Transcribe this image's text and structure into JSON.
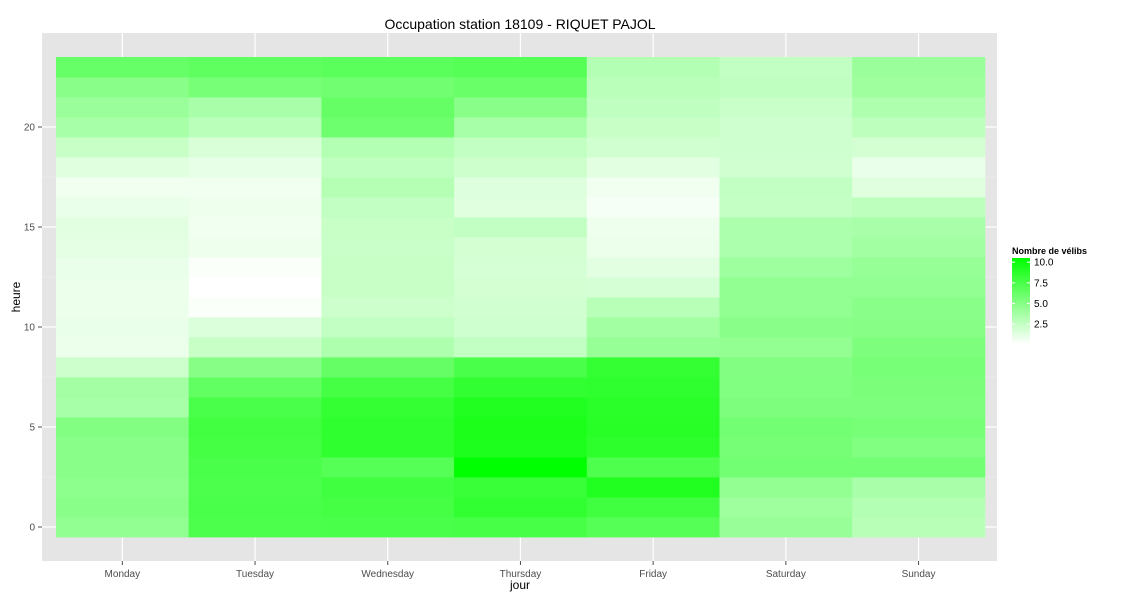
{
  "chart_data": {
    "type": "heatmap",
    "title": "Occupation station 18109 - RIQUET PAJOL",
    "xlabel": "jour",
    "ylabel": "heure",
    "categories": [
      "Monday",
      "Tuesday",
      "Wednesday",
      "Thursday",
      "Friday",
      "Saturday",
      "Sunday"
    ],
    "hours": [
      0,
      1,
      2,
      3,
      4,
      5,
      6,
      7,
      8,
      9,
      10,
      11,
      12,
      13,
      14,
      15,
      16,
      17,
      18,
      19,
      20,
      21,
      22,
      23
    ],
    "ylim": [
      -0.5,
      23.5
    ],
    "yticks": [
      0,
      5,
      10,
      15,
      20
    ],
    "color_low": "#ffffff",
    "color_high": "#00ff00",
    "background": "#e5e5e5",
    "grid": true,
    "values": [
      [
        4.6,
        7.4,
        7.5,
        7.6,
        7.0,
        4.3,
        3.0
      ],
      [
        4.9,
        7.5,
        7.7,
        8.5,
        7.9,
        4.0,
        3.2
      ],
      [
        4.8,
        7.4,
        7.9,
        8.2,
        9.2,
        4.5,
        3.6
      ],
      [
        4.9,
        7.5,
        7.0,
        10.5,
        7.3,
        5.8,
        5.8
      ],
      [
        4.9,
        7.7,
        8.6,
        9.3,
        8.7,
        5.7,
        5.3
      ],
      [
        5.2,
        7.8,
        8.6,
        9.4,
        8.9,
        5.8,
        5.6
      ],
      [
        3.7,
        7.5,
        8.4,
        9.2,
        8.8,
        5.4,
        5.4
      ],
      [
        3.8,
        6.5,
        7.7,
        8.5,
        8.6,
        5.3,
        5.5
      ],
      [
        2.2,
        5.0,
        6.4,
        7.5,
        8.4,
        5.2,
        5.6
      ],
      [
        0.9,
        2.4,
        3.4,
        2.6,
        4.4,
        4.5,
        5.4
      ],
      [
        1.0,
        1.6,
        2.6,
        2.1,
        3.9,
        4.9,
        5.0
      ],
      [
        0.9,
        0.3,
        2.2,
        2.0,
        3.0,
        4.6,
        4.9
      ],
      [
        0.9,
        0.1,
        2.4,
        1.9,
        1.8,
        4.6,
        4.6
      ],
      [
        1.0,
        0.3,
        2.4,
        1.8,
        1.3,
        4.1,
        4.4
      ],
      [
        1.2,
        0.8,
        2.3,
        1.9,
        0.9,
        3.5,
        3.9
      ],
      [
        1.3,
        0.7,
        2.4,
        2.6,
        0.8,
        3.5,
        3.6
      ],
      [
        1.0,
        0.8,
        2.6,
        1.4,
        0.5,
        2.5,
        2.8
      ],
      [
        0.7,
        0.7,
        3.1,
        1.5,
        0.7,
        2.6,
        1.4
      ],
      [
        1.4,
        1.1,
        2.7,
        2.2,
        1.3,
        2.0,
        1.0
      ],
      [
        2.4,
        1.7,
        3.2,
        2.6,
        2.0,
        2.1,
        1.9
      ],
      [
        3.7,
        2.9,
        6.0,
        3.7,
        2.4,
        2.1,
        2.8
      ],
      [
        4.2,
        3.6,
        6.4,
        4.9,
        2.7,
        2.3,
        3.4
      ],
      [
        4.9,
        5.6,
        5.9,
        6.2,
        2.9,
        2.7,
        4.0
      ],
      [
        6.3,
        6.6,
        6.8,
        7.0,
        3.2,
        2.6,
        4.2
      ]
    ],
    "legend": {
      "title": "Nombre de vélibs",
      "placement": "right",
      "ticks": [
        10.0,
        7.5,
        5.0,
        2.5
      ],
      "tick_labels": [
        "10.0",
        "7.5",
        "5.0",
        "2.5"
      ],
      "range": [
        0.1,
        10.5
      ]
    }
  }
}
